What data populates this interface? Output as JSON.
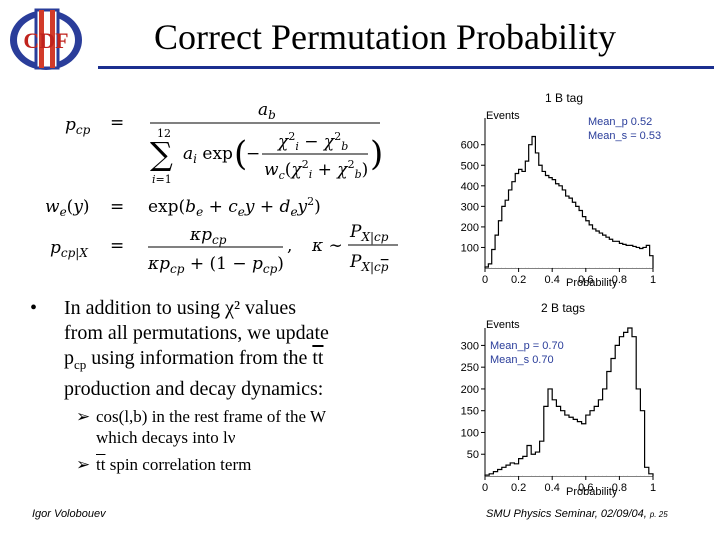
{
  "header": {
    "logo_text": "CDF",
    "logo_roman": "II",
    "title": "Correct Permutation Probability"
  },
  "equations": {
    "eq1_lhs": "p",
    "eq1_lhs_sub": "cp",
    "eq1_numer": "a",
    "eq1_numer_sub": "b",
    "eq2_lhs": "w_e(y)",
    "eq2_rhs": "exp(b_e + c_e y + d_e y²)",
    "eq3_lhs": "p_cp|X",
    "eq3_numer": "κ p_cp",
    "eq3_denom": "κ p_cp + (1 − p_cp)",
    "eq3_kappa_numer": "P_X|cp",
    "eq3_kappa_denom": "P_X|c̄p"
  },
  "bullets": {
    "main_line1": "In addition to using χ² values",
    "main_line2": "from all permutations, we update",
    "main_line3_a": "p",
    "main_line3_sub": "cp",
    "main_line3_b": " using information from the ",
    "main_line3_tt": "tt",
    "main_line4": "production and decay dynamics:",
    "sub1_line1": "cos(l,b) in the rest frame of the W",
    "sub1_line2": "which decays into lν",
    "sub2_tt": "tt",
    "sub2_rest": " spin correlation term"
  },
  "footer": {
    "author": "Igor Volobouev",
    "venue": "SMU Physics Seminar, 02/09/04,",
    "page": "p. 25"
  },
  "chart_data": [
    {
      "type": "bar",
      "title": "1 B tag",
      "ylabel": "Events",
      "xlabel": "Probability",
      "xlim": [
        0,
        1
      ],
      "ylim": [
        0,
        730
      ],
      "xticks": [
        "0",
        "0.2",
        "0.4",
        "0.6",
        "0.8",
        "1"
      ],
      "yticks": [
        "100",
        "200",
        "300",
        "400",
        "500",
        "600"
      ],
      "legend": [
        "Mean_p 0.52",
        "Mean_s = 0.53"
      ],
      "values": [
        5,
        20,
        90,
        160,
        230,
        300,
        330,
        380,
        420,
        460,
        480,
        470,
        520,
        600,
        640,
        560,
        500,
        470,
        450,
        440,
        430,
        410,
        400,
        380,
        350,
        340,
        320,
        300,
        280,
        250,
        230,
        210,
        190,
        180,
        170,
        160,
        150,
        140,
        130,
        130,
        120,
        115,
        110,
        110,
        105,
        100,
        95,
        100,
        110,
        60
      ]
    },
    {
      "type": "bar",
      "title": "2 B tags",
      "ylabel": "Events",
      "xlabel": "Probability",
      "xlim": [
        0,
        1
      ],
      "ylim": [
        0,
        340
      ],
      "xticks": [
        "0",
        "0.2",
        "0.4",
        "0.6",
        "0.8",
        "1"
      ],
      "yticks": [
        "50",
        "100",
        "150",
        "200",
        "250",
        "300"
      ],
      "legend": [
        "Mean_p = 0.70",
        "Mean_s 0.70"
      ],
      "values": [
        2,
        5,
        10,
        15,
        20,
        25,
        30,
        28,
        40,
        45,
        70,
        50,
        55,
        80,
        160,
        200,
        175,
        160,
        150,
        140,
        135,
        130,
        125,
        120,
        140,
        150,
        160,
        175,
        200,
        240,
        270,
        300,
        320,
        330,
        340,
        320,
        200,
        150,
        20,
        5
      ]
    }
  ]
}
